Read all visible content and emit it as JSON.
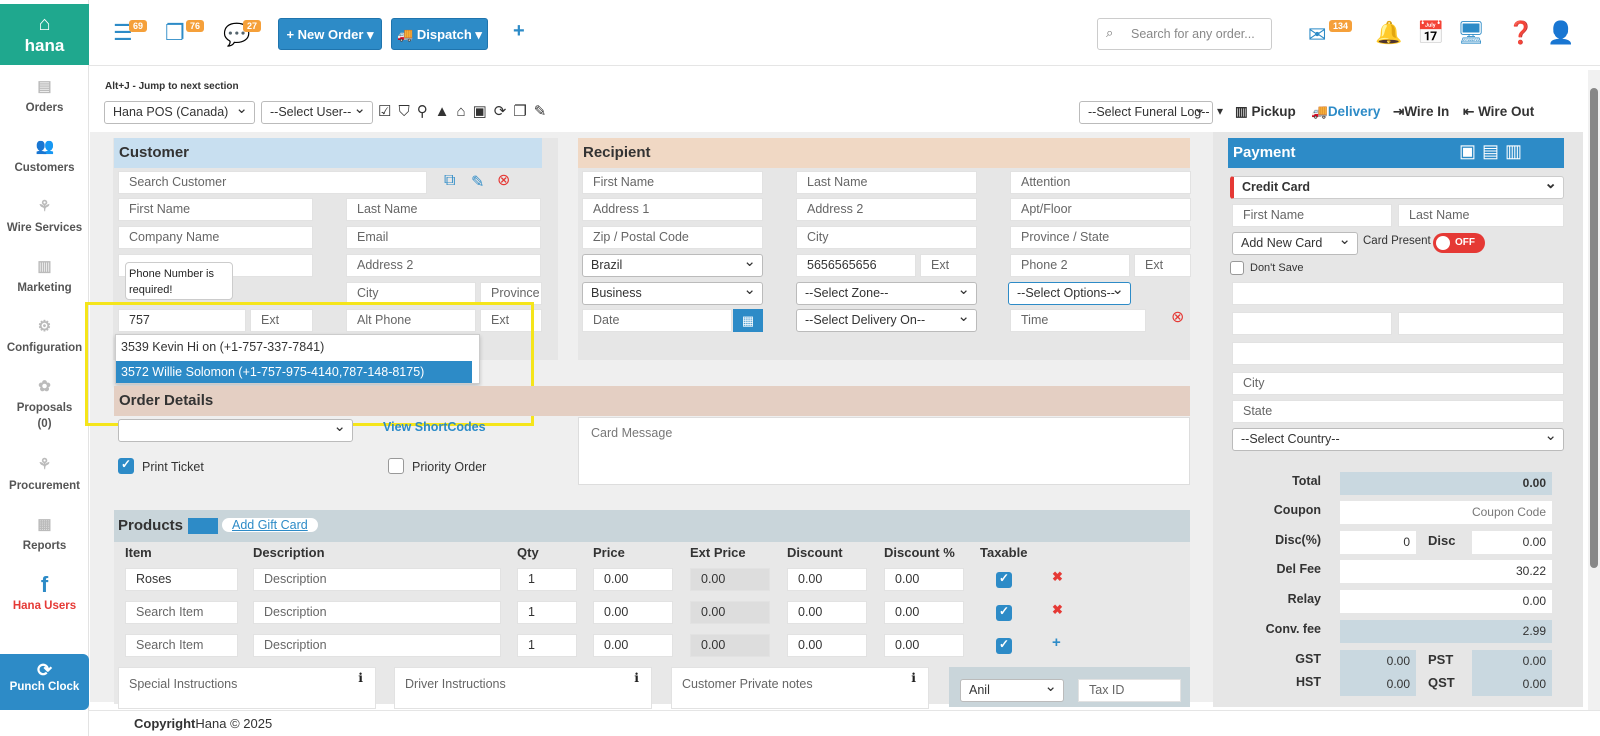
{
  "sidebar": {
    "logo": "hana",
    "items": [
      {
        "label": "Orders"
      },
      {
        "label": "Customers"
      },
      {
        "label": "Wire Services"
      },
      {
        "label": "Marketing"
      },
      {
        "label": "Configuration"
      },
      {
        "label": "Proposals"
      },
      {
        "label": "(0)"
      },
      {
        "label": "Procurement"
      },
      {
        "label": "Reports"
      },
      {
        "label": "Hana Users"
      }
    ],
    "punch": "Punch Clock"
  },
  "topbar": {
    "badge1": "69",
    "badge2": "76",
    "badge3": "27",
    "new_order": "New Order",
    "dispatch": "Dispatch",
    "search_placeholder": "Search for any order...",
    "mail_badge": "134"
  },
  "toolbar": {
    "hint": "Alt+J - Jump to next section",
    "store": "Hana POS (Canada)",
    "user": "--Select User--",
    "funeral": "--Select Funeral Log--",
    "pickup": "Pickup",
    "delivery": "Delivery",
    "wire_in": "Wire In",
    "wire_out": "Wire Out"
  },
  "customer": {
    "title": "Customer",
    "search": "Search Customer",
    "first": "First Name",
    "last": "Last Name",
    "company": "Company Name",
    "email": "Email",
    "address2": "Address 2",
    "city": "City",
    "province": "Province",
    "phone": "757",
    "ext": "Ext",
    "alt_phone": "Alt Phone",
    "ext2": "Ext",
    "tooltip": "Phone Number is required!",
    "suggestions": [
      "3539 Kevin Hi on (+1-757-337-7841)",
      "3572 Willie Solomon (+1-757-975-4140,787-148-8175)"
    ]
  },
  "recipient": {
    "title": "Recipient",
    "first": "First Name",
    "last": "Last Name",
    "attention": "Attention",
    "address1": "Address 1",
    "address2": "Address 2",
    "apt": "Apt/Floor",
    "zip": "Zip / Postal Code",
    "city": "City",
    "province": "Province / State",
    "country": "Brazil",
    "phone": "5656565656",
    "ext": "Ext",
    "phone2": "Phone 2",
    "ext2": "Ext",
    "type": "Business",
    "zone": "--Select Zone--",
    "options": "--Select Options--",
    "date": "Date",
    "delivery_on": "--Select Delivery On--",
    "time": "Time"
  },
  "order": {
    "title": "Order Details",
    "shortcodes": "View ShortCodes",
    "card_message": "Card Message",
    "print_ticket": "Print Ticket",
    "priority": "Priority Order"
  },
  "products": {
    "title": "Products",
    "gift": "Add Gift Card",
    "headers": [
      "Item",
      "Description",
      "Qty",
      "Price",
      "Ext Price",
      "Discount",
      "Discount %",
      "Taxable"
    ],
    "rows": [
      {
        "item": "Roses",
        "desc": "Description",
        "qty": "1",
        "price": "0.00",
        "ext": "0.00",
        "disc": "0.00",
        "discp": "0.00"
      },
      {
        "item": "Search Item",
        "desc": "Description",
        "qty": "1",
        "price": "0.00",
        "ext": "0.00",
        "disc": "0.00",
        "discp": "0.00"
      },
      {
        "item": "Search Item",
        "desc": "Description",
        "qty": "1",
        "price": "0.00",
        "ext": "0.00",
        "disc": "0.00",
        "discp": "0.00"
      }
    ],
    "special": "Special Instructions",
    "driver": "Driver Instructions",
    "private": "Customer Private notes",
    "agent": "Anil",
    "taxid": "Tax ID"
  },
  "payment": {
    "title": "Payment",
    "method": "Credit Card",
    "first": "First Name",
    "last": "Last Name",
    "add_card": "Add New Card",
    "card_present": "Card Present",
    "toggle": "OFF",
    "dont_save": "Don't Save",
    "city": "City",
    "state": "State",
    "country": "--Select Country--",
    "total_lbl": "Total",
    "total": "0.00",
    "coupon_lbl": "Coupon",
    "coupon": "Coupon Code",
    "discp_lbl": "Disc(%)",
    "discp": "0",
    "disc_lbl": "Disc",
    "disc": "0.00",
    "delfee_lbl": "Del Fee",
    "delfee": "30.22",
    "relay_lbl": "Relay",
    "relay": "0.00",
    "conv_lbl": "Conv. fee",
    "conv": "2.99",
    "gst_lbl": "GST",
    "gst": "0.00",
    "pst_lbl": "PST",
    "pst": "0.00",
    "hst_lbl": "HST",
    "hst": "0.00",
    "qst_lbl": "QST",
    "qst": "0.00"
  },
  "footer": {
    "copyright": "Copyright",
    "brand": "Hana © 2025"
  }
}
